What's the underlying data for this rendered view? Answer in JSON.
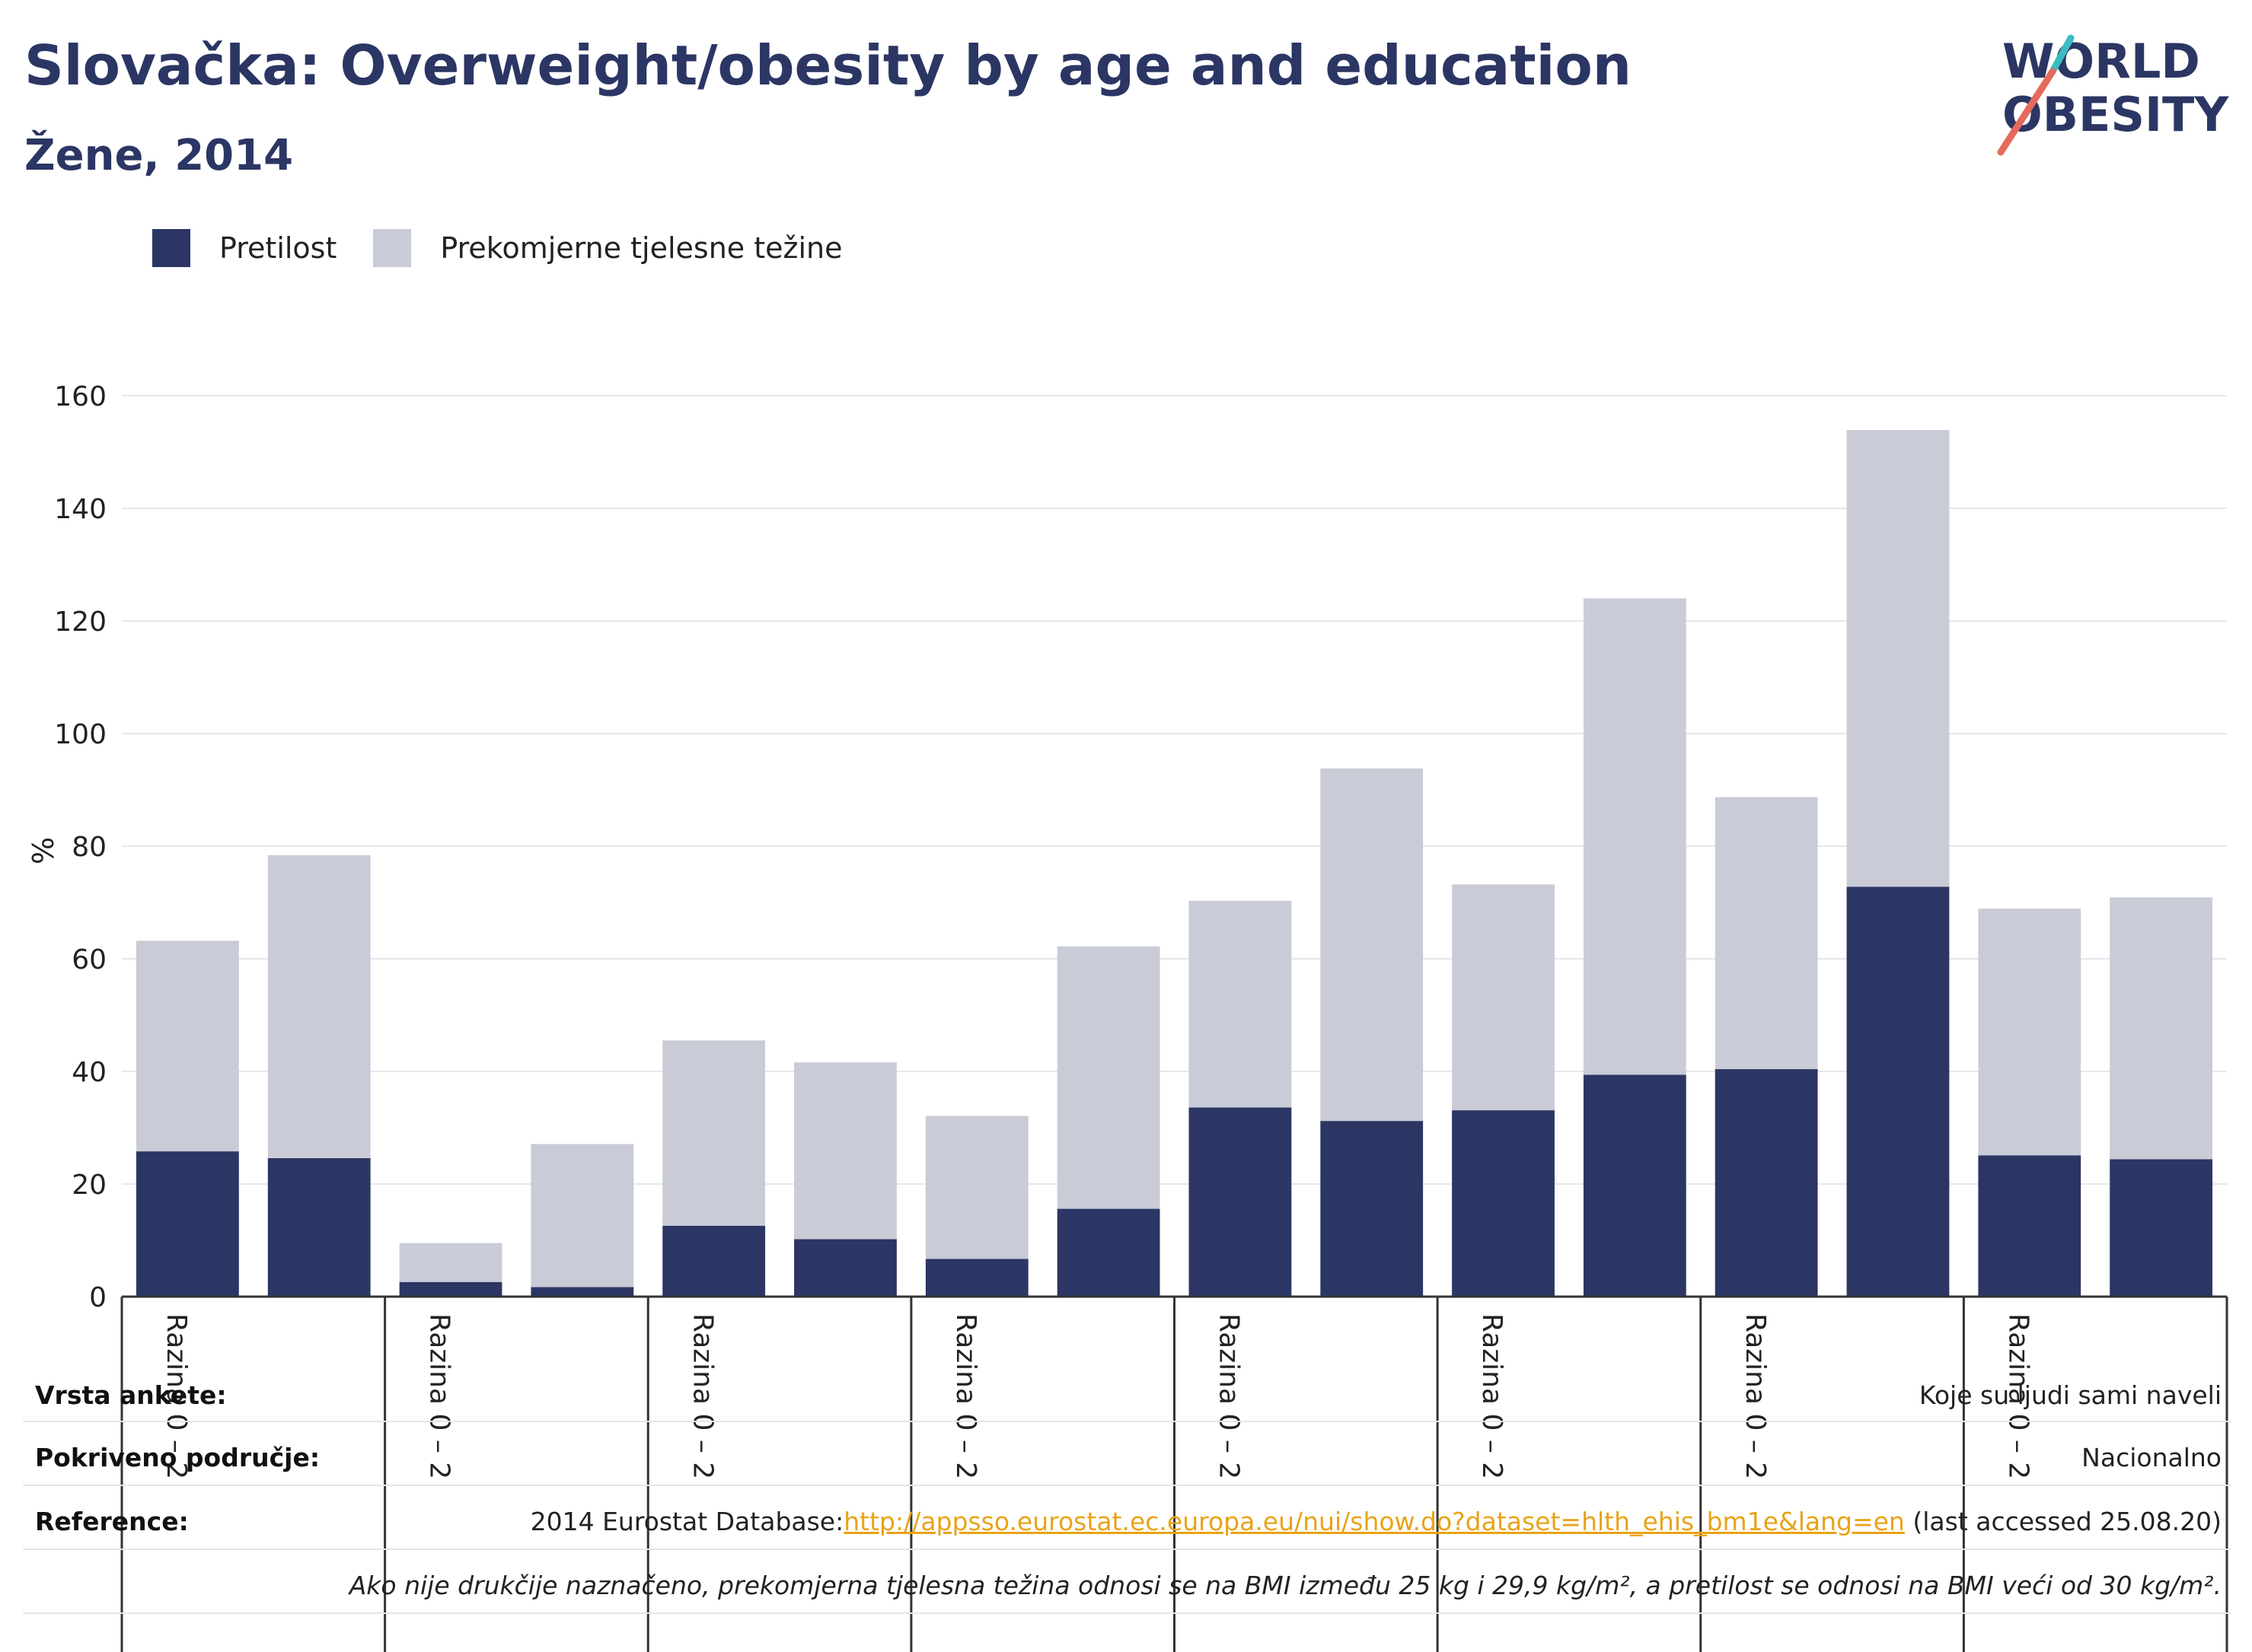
{
  "title": "Slovačka: Overweight/obesity by age and education",
  "subtitle": "Žene, 2014",
  "logo": {
    "line1": "WORLD",
    "line2": "OBESITY"
  },
  "legend": {
    "obesity_label": "Pretilost",
    "overweight_label": "Prekomjerne tjelesne težine"
  },
  "colors": {
    "obesity": "#2b3664",
    "overweight": "#c9cbd7",
    "link": "#e8a317"
  },
  "chart_data": {
    "type": "bar",
    "stacked": true,
    "ylabel": "%",
    "ylim": [
      0,
      160
    ],
    "yticks": [
      0,
      20,
      40,
      60,
      80,
      100,
      120,
      140,
      160
    ],
    "grid": true,
    "legend_position": "top-left",
    "group_labels": [
      "Razina 0 – 2",
      "Razina 0 – 2",
      "Razina 0 – 2",
      "Razina 0 – 2",
      "Razina 0 – 2",
      "Razina 0 – 2",
      "Razina 0 – 2",
      "Razina 0 – 2"
    ],
    "series": [
      {
        "name": "Pretilost",
        "values": [
          25.8,
          24.6,
          2.6,
          1.7,
          12.6,
          10.2,
          6.7,
          15.6,
          33.6,
          31.2,
          33.1,
          39.4,
          40.4,
          72.8,
          25.1,
          24.4
        ]
      },
      {
        "name": "Prekomjerne tjelesne težine",
        "values": [
          37.4,
          53.8,
          6.9,
          25.4,
          32.9,
          31.4,
          25.4,
          46.6,
          36.7,
          62.6,
          40.1,
          84.6,
          48.3,
          81.1,
          43.8,
          46.5
        ]
      }
    ]
  },
  "info": {
    "survey_label": "Vrsta ankete:",
    "survey_value": "Koje su ljudi sami naveli",
    "coverage_label": "Pokriveno područje:",
    "coverage_value": "Nacionalno",
    "reference_label": "Reference:",
    "reference_prefix": "2014 Eurostat Database:",
    "reference_link": "http://appsso.eurostat.ec.europa.eu/nui/show.do?dataset=hlth_ehis_bm1e&lang=en",
    "reference_suffix": " (last accessed 25.08.20)",
    "note": "Ako nije drukčije naznačeno, prekomjerna tjelesna težina odnosi se na BMI između 25 kg i 29,9 kg/m², a pretilost se odnosi na BMI veći od 30 kg/m²."
  }
}
